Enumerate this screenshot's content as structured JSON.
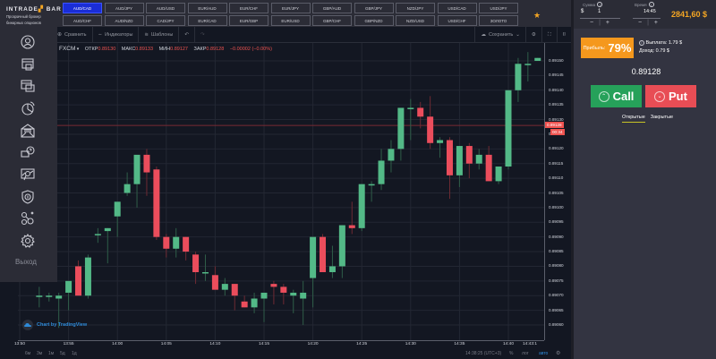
{
  "brand": {
    "name_part1": "INTRADE",
    "name_accent": "",
    "name_part2": " BAR",
    "tagline_line1": "Прозрачный брокер",
    "tagline_line2": "бинарных опционов"
  },
  "pairs": [
    {
      "label": "AUD/CAD",
      "active": true
    },
    {
      "label": "AUD/JPY",
      "active": false
    },
    {
      "label": "AUD/USD",
      "active": false
    },
    {
      "label": "EUR/AUD",
      "active": false
    },
    {
      "label": "EUR/CHF",
      "active": false
    },
    {
      "label": "EUR/JPY",
      "active": false
    },
    {
      "label": "GBP/AUD",
      "active": false
    },
    {
      "label": "GBP/JPY",
      "active": false
    },
    {
      "label": "NZD/JPY",
      "active": false
    },
    {
      "label": "USD/CAD",
      "active": false
    },
    {
      "label": "USD/JPY",
      "active": false
    },
    {
      "label": "AUD/CHF",
      "active": false
    },
    {
      "label": "AUD/NZD",
      "active": false
    },
    {
      "label": "CAD/JPY",
      "active": false
    },
    {
      "label": "EUR/CAD",
      "active": false
    },
    {
      "label": "EUR/GBP",
      "active": false
    },
    {
      "label": "EUR/USD",
      "active": false
    },
    {
      "label": "GBP/CHF",
      "active": false
    },
    {
      "label": "GBP/NZD",
      "active": false
    },
    {
      "label": "NZD/USD",
      "active": false
    },
    {
      "label": "USD/CHF",
      "active": false
    },
    {
      "label": "ЗОЛОТО",
      "active": false
    }
  ],
  "favorite_icon": "star-icon",
  "sidebar": {
    "items": [
      {
        "icon": "profile-icon"
      },
      {
        "icon": "window-cards-icon"
      },
      {
        "icon": "window-stack-icon"
      },
      {
        "icon": "pie-chart-icon"
      },
      {
        "icon": "mail-icon"
      },
      {
        "icon": "help-chat-icon"
      },
      {
        "icon": "presentation-search-icon"
      },
      {
        "icon": "shield-icon"
      },
      {
        "icon": "network-users-icon"
      },
      {
        "icon": "gear-icon"
      }
    ],
    "logout_label": "Выход"
  },
  "toolbar": {
    "compare": "Сравнить",
    "indicators": "Индикаторы",
    "templates": "Шаблоны",
    "save": "Сохранить"
  },
  "legend": {
    "source": "FXCM",
    "open_label": "ОТКР",
    "open": "0.89130",
    "high_label": "МАКС",
    "high": "0.89133",
    "low_label": "МИН",
    "low": "0.89127",
    "close_label": "ЗАКР",
    "close": "0.89128",
    "change": "−0.00002 (−0.00%)"
  },
  "chart_data": {
    "type": "candlestick",
    "title": "AUD/CAD FXCM 1m",
    "price_ticks": [
      "0.89150",
      "0.89145",
      "0.89140",
      "0.89135",
      "0.89130",
      "0.89125",
      "0.89120",
      "0.89115",
      "0.89110",
      "0.89105",
      "0.89100",
      "0.89095",
      "0.89090",
      "0.89085",
      "0.89080",
      "0.89075",
      "0.89070",
      "0.89065",
      "0.89060"
    ],
    "time_ticks": [
      "13:50",
      "13:55",
      "14:00",
      "14:05",
      "14:10",
      "14:15",
      "14:20",
      "14:25",
      "14:30",
      "14:35",
      "14:40",
      "14:43:1"
    ],
    "current_price": "0.89128",
    "countdown": "00:34",
    "candles": [
      {
        "o": 0.8907,
        "h": 0.89073,
        "l": 0.89066,
        "c": 0.8907
      },
      {
        "o": 0.8907,
        "h": 0.89071,
        "l": 0.89068,
        "c": 0.8907
      },
      {
        "o": 0.89069,
        "h": 0.89071,
        "l": 0.89059,
        "c": 0.8907
      },
      {
        "o": 0.89071,
        "h": 0.89073,
        "l": 0.89065,
        "c": 0.89075
      },
      {
        "o": 0.8908,
        "h": 0.89082,
        "l": 0.89072,
        "c": 0.8907
      },
      {
        "o": 0.8907,
        "h": 0.89084,
        "l": 0.89069,
        "c": 0.89083
      },
      {
        "o": 0.89091,
        "h": 0.89093,
        "l": 0.89088,
        "c": 0.89091
      },
      {
        "o": 0.89092,
        "h": 0.89093,
        "l": 0.89081,
        "c": 0.89093
      },
      {
        "o": 0.89097,
        "h": 0.89099,
        "l": 0.8909,
        "c": 0.89102
      },
      {
        "o": 0.89105,
        "h": 0.89112,
        "l": 0.89104,
        "c": 0.89108
      },
      {
        "o": 0.89108,
        "h": 0.8911,
        "l": 0.891,
        "c": 0.89118
      },
      {
        "o": 0.89118,
        "h": 0.8912,
        "l": 0.89104,
        "c": 0.89112
      },
      {
        "o": 0.89113,
        "h": 0.89114,
        "l": 0.89089,
        "c": 0.8909
      },
      {
        "o": 0.8909,
        "h": 0.89091,
        "l": 0.89083,
        "c": 0.89086
      },
      {
        "o": 0.89086,
        "h": 0.89093,
        "l": 0.89083,
        "c": 0.8909
      },
      {
        "o": 0.8909,
        "h": 0.8909,
        "l": 0.89082,
        "c": 0.89085
      },
      {
        "o": 0.89084,
        "h": 0.89085,
        "l": 0.89074,
        "c": 0.89078
      },
      {
        "o": 0.89078,
        "h": 0.89084,
        "l": 0.89075,
        "c": 0.89078
      },
      {
        "o": 0.89077,
        "h": 0.8908,
        "l": 0.89073,
        "c": 0.89072
      },
      {
        "o": 0.89072,
        "h": 0.89076,
        "l": 0.8907,
        "c": 0.89074
      },
      {
        "o": 0.89074,
        "h": 0.89074,
        "l": 0.89065,
        "c": 0.8907
      },
      {
        "o": 0.89068,
        "h": 0.8907,
        "l": 0.89066,
        "c": 0.89066
      },
      {
        "o": 0.89066,
        "h": 0.89071,
        "l": 0.89064,
        "c": 0.89069
      },
      {
        "o": 0.89069,
        "h": 0.89071,
        "l": 0.89061,
        "c": 0.89071
      },
      {
        "o": 0.89074,
        "h": 0.89075,
        "l": 0.89067,
        "c": 0.89073
      },
      {
        "o": 0.89073,
        "h": 0.89074,
        "l": 0.89067,
        "c": 0.89071
      },
      {
        "o": 0.8907,
        "h": 0.89072,
        "l": 0.89064,
        "c": 0.89071
      },
      {
        "o": 0.89069,
        "h": 0.89075,
        "l": 0.8906,
        "c": 0.89071
      },
      {
        "o": 0.89076,
        "h": 0.89077,
        "l": 0.89066,
        "c": 0.8909
      },
      {
        "o": 0.8909,
        "h": 0.89091,
        "l": 0.89078,
        "c": 0.89078
      },
      {
        "o": 0.89078,
        "h": 0.89087,
        "l": 0.89076,
        "c": 0.8908
      },
      {
        "o": 0.8908,
        "h": 0.89094,
        "l": 0.89076,
        "c": 0.89094
      },
      {
        "o": 0.89094,
        "h": 0.89102,
        "l": 0.89091,
        "c": 0.89093
      },
      {
        "o": 0.89093,
        "h": 0.89108,
        "l": 0.89092,
        "c": 0.89108
      },
      {
        "o": 0.89108,
        "h": 0.89109,
        "l": 0.89102,
        "c": 0.89108
      },
      {
        "o": 0.89108,
        "h": 0.8912,
        "l": 0.89106,
        "c": 0.89116
      },
      {
        "o": 0.89116,
        "h": 0.89123,
        "l": 0.89112,
        "c": 0.8912
      },
      {
        "o": 0.8912,
        "h": 0.89131,
        "l": 0.89116,
        "c": 0.89134
      },
      {
        "o": 0.89134,
        "h": 0.89137,
        "l": 0.89123,
        "c": 0.89134
      },
      {
        "o": 0.89134,
        "h": 0.89136,
        "l": 0.89127,
        "c": 0.89131
      },
      {
        "o": 0.89131,
        "h": 0.89138,
        "l": 0.8912,
        "c": 0.89122
      },
      {
        "o": 0.89122,
        "h": 0.89124,
        "l": 0.89117,
        "c": 0.89123
      },
      {
        "o": 0.89123,
        "h": 0.89124,
        "l": 0.89103,
        "c": 0.89111
      },
      {
        "o": 0.89111,
        "h": 0.89121,
        "l": 0.89107,
        "c": 0.89121
      },
      {
        "o": 0.89121,
        "h": 0.89122,
        "l": 0.8911,
        "c": 0.89115
      },
      {
        "o": 0.89115,
        "h": 0.8912,
        "l": 0.89113,
        "c": 0.89118
      },
      {
        "o": 0.89118,
        "h": 0.89121,
        "l": 0.8911,
        "c": 0.89109
      },
      {
        "o": 0.89109,
        "h": 0.89113,
        "l": 0.89108,
        "c": 0.89114
      },
      {
        "o": 0.89114,
        "h": 0.8914,
        "l": 0.89113,
        "c": 0.8914
      },
      {
        "o": 0.8914,
        "h": 0.89151,
        "l": 0.89136,
        "c": 0.89149
      },
      {
        "o": 0.89149,
        "h": 0.89153,
        "l": 0.89143,
        "c": 0.89149
      },
      {
        "o": 0.8915,
        "h": 0.89151,
        "l": 0.8915,
        "c": 0.89151
      },
      {
        "o": 0.89151,
        "h": 0.89151,
        "l": 0.89132,
        "c": 0.89133
      },
      {
        "o": 0.8913,
        "h": 0.89133,
        "l": 0.89127,
        "c": 0.89128
      }
    ]
  },
  "bottom_bar": {
    "timeframes": [
      "6м",
      "3м",
      "1м",
      "5д",
      "1д"
    ],
    "clock": "14:38:25 (UTC+3)",
    "percent": "%",
    "log": "лог",
    "auto": "авто"
  },
  "tradingview_badge": "Chart by TradingView",
  "trade_panel": {
    "amount_label": "Сумма",
    "currency": "$",
    "amount": "1",
    "time_label": "Время",
    "time": "14:45",
    "balance": "2841,60 $",
    "profit_label": "Прибыль:",
    "profit_value": "79%",
    "payout": "Выплата: 1.79 $",
    "income": "Доход: 0.79 $",
    "current_price": "0.89128",
    "call_label": "Call",
    "put_label": "Put",
    "tab_open": "Открытые",
    "tab_closed": "Закрытые",
    "stepper_minus": "−",
    "stepper_plus": "+"
  },
  "colors": {
    "up": "#53b987",
    "down": "#eb4d5c",
    "accent_orange": "#f5a623",
    "call_green": "#26a15a",
    "put_red": "#e84d55",
    "active_pair_blue": "#1a2dd6"
  }
}
